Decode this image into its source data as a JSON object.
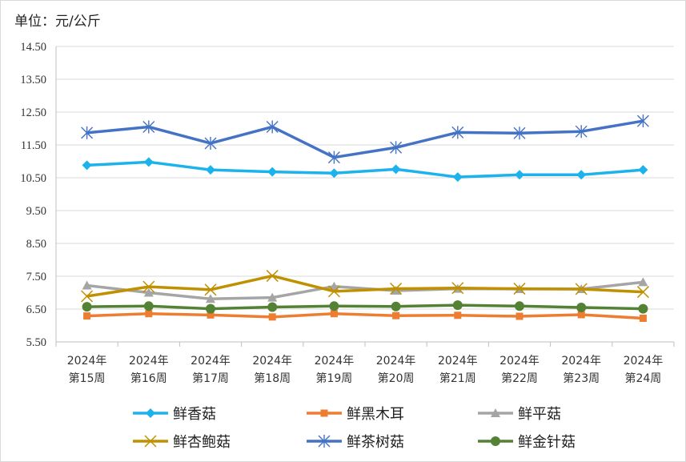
{
  "unit_label": "单位：元/公斤",
  "chart_data": {
    "type": "line",
    "title": "",
    "xlabel": "",
    "ylabel": "单位：元/公斤",
    "ylim": [
      5.5,
      14.5
    ],
    "yticks": [
      "14.50",
      "13.50",
      "12.50",
      "11.50",
      "10.50",
      "9.50",
      "8.50",
      "7.50",
      "6.50",
      "5.50"
    ],
    "ytick_values": [
      14.5,
      13.5,
      12.5,
      11.5,
      10.5,
      9.5,
      8.5,
      7.5,
      6.5,
      5.5
    ],
    "categories": [
      [
        "2024年",
        "第15周"
      ],
      [
        "2024年",
        "第16周"
      ],
      [
        "2024年",
        "第17周"
      ],
      [
        "2024年",
        "第18周"
      ],
      [
        "2024年",
        "第19周"
      ],
      [
        "2024年",
        "第20周"
      ],
      [
        "2024年",
        "第21周"
      ],
      [
        "2024年",
        "第22周"
      ],
      [
        "2024年",
        "第23周"
      ],
      [
        "2024年",
        "第24周"
      ]
    ],
    "grid": "horizontal",
    "legend_position": "bottom",
    "series": [
      {
        "name": "鲜香菇",
        "color": "#1cb2ec",
        "marker": "diamond",
        "values": [
          10.88,
          10.98,
          10.74,
          10.68,
          10.64,
          10.76,
          10.52,
          10.59,
          10.59,
          10.74
        ]
      },
      {
        "name": "鲜黑木耳",
        "color": "#ed7d31",
        "marker": "square",
        "values": [
          6.29,
          6.36,
          6.32,
          6.26,
          6.36,
          6.3,
          6.31,
          6.28,
          6.33,
          6.22
        ]
      },
      {
        "name": "鲜平菇",
        "color": "#a5a5a5",
        "marker": "triangle",
        "values": [
          7.22,
          7.0,
          6.81,
          6.85,
          7.19,
          7.06,
          7.12,
          7.11,
          7.11,
          7.32
        ]
      },
      {
        "name": "鲜杏鲍菇",
        "color": "#bf9000",
        "marker": "x",
        "values": [
          6.89,
          7.18,
          7.09,
          7.51,
          7.04,
          7.12,
          7.14,
          7.12,
          7.11,
          7.02
        ]
      },
      {
        "name": "鲜茶树菇",
        "color": "#4472c4",
        "marker": "asterisk",
        "values": [
          11.87,
          12.05,
          11.55,
          12.05,
          11.12,
          11.42,
          11.88,
          11.86,
          11.91,
          12.23
        ]
      },
      {
        "name": "鲜金针菇",
        "color": "#548235",
        "marker": "circle",
        "values": [
          6.57,
          6.59,
          6.51,
          6.56,
          6.59,
          6.58,
          6.62,
          6.59,
          6.55,
          6.51
        ]
      }
    ]
  }
}
